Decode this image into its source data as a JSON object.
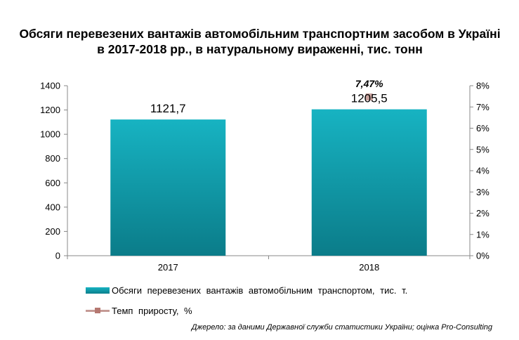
{
  "chart_data": {
    "type": "bar",
    "title": "Обсяги перевезених вантажів автомобільним транспортним засобом в Україні в 2017-2018 рр., в натуральному вираженні, тис. тонн",
    "categories": [
      "2017",
      "2018"
    ],
    "series": [
      {
        "name": "Обсяги перевезених вантажів автомобільним транспортом, тис. т.",
        "type": "bar",
        "axis": "left",
        "values": [
          1121.7,
          1205.5
        ],
        "labels": [
          "1121,7",
          "1205,5"
        ],
        "color": "#13a3b2"
      },
      {
        "name": "Темп приросту, %",
        "type": "line",
        "axis": "right",
        "values": [
          null,
          7.47
        ],
        "labels": [
          "",
          "7,47%"
        ],
        "color": "#c59a95"
      }
    ],
    "y_left": {
      "min": 0,
      "max": 1400,
      "ticks": [
        0,
        200,
        400,
        600,
        800,
        1000,
        1200,
        1400
      ],
      "tick_labels": [
        "0",
        "200",
        "400",
        "600",
        "800",
        "1000",
        "1200",
        "1400"
      ]
    },
    "y_right": {
      "min": 0,
      "max": 8,
      "ticks": [
        0,
        1,
        2,
        3,
        4,
        5,
        6,
        7,
        8
      ],
      "tick_labels": [
        "0%",
        "1%",
        "2%",
        "3%",
        "4%",
        "5%",
        "6%",
        "7%",
        "8%"
      ]
    },
    "grid": false,
    "legend_position": "bottom",
    "xlabel": "",
    "ylabel": ""
  },
  "source": "Джерело: за даними Державної служби статистики України; оцінка Pro-Consulting"
}
